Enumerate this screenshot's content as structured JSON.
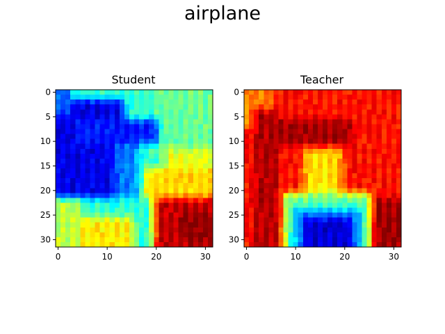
{
  "figure": {
    "title": "airplane"
  },
  "chart_data": [
    {
      "type": "heatmap",
      "title": "Student",
      "xlim": [
        -0.5,
        31.5
      ],
      "ylim": [
        31.5,
        -0.5
      ],
      "xticks": [
        0,
        10,
        20,
        30
      ],
      "yticks": [
        0,
        5,
        10,
        15,
        20,
        25,
        30
      ],
      "colormap": "jet",
      "grid": false,
      "regions": [
        {
          "x": [
            0,
            32
          ],
          "y": [
            0,
            32
          ],
          "level": 0.42
        },
        {
          "x": [
            20,
            32
          ],
          "y": [
            0,
            14
          ],
          "level": 0.48
        },
        {
          "x": [
            22,
            32
          ],
          "y": [
            12,
            18
          ],
          "level": 0.6
        },
        {
          "x": [
            18,
            32
          ],
          "y": [
            16,
            22
          ],
          "level": 0.66
        },
        {
          "x": [
            20,
            32
          ],
          "y": [
            22,
            32
          ],
          "level": 0.93
        },
        {
          "x": [
            25,
            32
          ],
          "y": [
            25,
            31
          ],
          "level": 0.98
        },
        {
          "x": [
            5,
            16
          ],
          "y": [
            26,
            32
          ],
          "level": 0.64
        },
        {
          "x": [
            0,
            5
          ],
          "y": [
            22,
            32
          ],
          "level": 0.56
        },
        {
          "x": [
            0,
            14
          ],
          "y": [
            2,
            22
          ],
          "level": 0.1
        },
        {
          "x": [
            4,
            21
          ],
          "y": [
            6,
            11
          ],
          "level": 0.15
        },
        {
          "x": [
            12,
            17
          ],
          "y": [
            11,
            22
          ],
          "level": 0.25
        },
        {
          "x": [
            0,
            3
          ],
          "y": [
            0,
            5
          ],
          "level": 0.22
        }
      ]
    },
    {
      "type": "heatmap",
      "title": "Teacher",
      "xlim": [
        -0.5,
        31.5
      ],
      "ylim": [
        31.5,
        -0.5
      ],
      "xticks": [
        0,
        10,
        20,
        30
      ],
      "yticks": [
        0,
        5,
        10,
        15,
        20,
        25,
        30
      ],
      "colormap": "jet",
      "grid": false,
      "regions": [
        {
          "x": [
            0,
            32
          ],
          "y": [
            0,
            32
          ],
          "level": 0.86
        },
        {
          "x": [
            0,
            6
          ],
          "y": [
            0,
            8
          ],
          "level": 0.75
        },
        {
          "x": [
            2,
            7
          ],
          "y": [
            4,
            32
          ],
          "level": 0.95
        },
        {
          "x": [
            5,
            22
          ],
          "y": [
            6,
            11
          ],
          "level": 0.97
        },
        {
          "x": [
            22,
            32
          ],
          "y": [
            22,
            32
          ],
          "level": 0.97
        },
        {
          "x": [
            12,
            20
          ],
          "y": [
            12,
            22
          ],
          "level": 0.66
        },
        {
          "x": [
            8,
            26
          ],
          "y": [
            21,
            32
          ],
          "level": 0.48
        },
        {
          "x": [
            10,
            24
          ],
          "y": [
            24,
            32
          ],
          "level": 0.28
        },
        {
          "x": [
            12,
            22
          ],
          "y": [
            26,
            32
          ],
          "level": 0.08
        }
      ]
    }
  ]
}
